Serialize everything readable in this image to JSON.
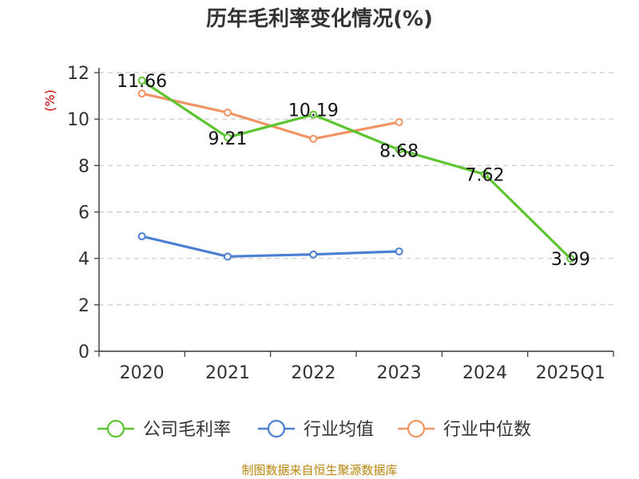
{
  "chart_data": {
    "type": "line",
    "title": "历年毛利率变化情况(%)",
    "unit_label": "(%)",
    "categories": [
      "2020",
      "2021",
      "2022",
      "2023",
      "2024",
      "2025Q1"
    ],
    "ylim": [
      0,
      12
    ],
    "yticks": [
      0,
      2,
      4,
      6,
      8,
      10,
      12
    ],
    "grid": true,
    "legend_position": "bottom",
    "series": [
      {
        "name": "公司毛利率",
        "color": "#5cc530",
        "values": [
          11.66,
          9.21,
          10.19,
          8.68,
          7.62,
          3.99
        ],
        "labels": [
          "11.66",
          "9.21",
          "10.19",
          "8.68",
          "7.62",
          "3.99"
        ]
      },
      {
        "name": "行业均值",
        "color": "#4a7fd4",
        "values": [
          4.95,
          4.08,
          4.17,
          4.3,
          null,
          null
        ]
      },
      {
        "name": "行业中位数",
        "color": "#f29363",
        "values": [
          11.1,
          10.28,
          9.15,
          9.87,
          null,
          null
        ]
      }
    ],
    "source": "制图数据来自恒生聚源数据库"
  }
}
